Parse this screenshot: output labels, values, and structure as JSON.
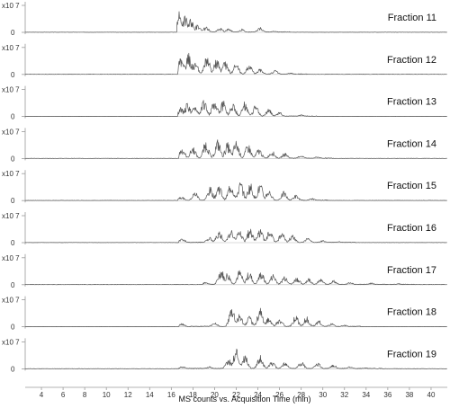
{
  "chart_data": {
    "type": "line",
    "xlabel": "MS counts vs. Acquisition Time (min)",
    "xlim": [
      2.5,
      41.5
    ],
    "xticks": [
      4,
      6,
      8,
      10,
      12,
      14,
      16,
      18,
      20,
      22,
      24,
      26,
      28,
      30,
      32,
      34,
      36,
      38,
      40
    ],
    "y_scale_label": "x10 7",
    "y_zero_label": "0",
    "series_color": "#555555",
    "series": [
      {
        "name": "Fraction 11",
        "peaks": [
          [
            16.8,
            0.95
          ],
          [
            17.3,
            0.75
          ],
          [
            17.8,
            0.6
          ],
          [
            18.4,
            0.35
          ],
          [
            19.2,
            0.25
          ],
          [
            20.5,
            0.2
          ],
          [
            21.3,
            0.18
          ],
          [
            22.5,
            0.15
          ],
          [
            24.2,
            0.22
          ],
          [
            25.5,
            0.06
          ]
        ]
      },
      {
        "name": "Fraction 12",
        "peaks": [
          [
            16.9,
            0.8
          ],
          [
            17.6,
            0.95
          ],
          [
            18.2,
            0.6
          ],
          [
            19.3,
            0.85
          ],
          [
            20.2,
            0.7
          ],
          [
            21.0,
            0.6
          ],
          [
            22.0,
            0.5
          ],
          [
            23.2,
            0.45
          ],
          [
            24.2,
            0.3
          ],
          [
            25.6,
            0.2
          ],
          [
            27.0,
            0.08
          ]
        ]
      },
      {
        "name": "Fraction 13",
        "peaks": [
          [
            16.9,
            0.4
          ],
          [
            17.5,
            0.6
          ],
          [
            18.2,
            0.5
          ],
          [
            19.0,
            0.75
          ],
          [
            20.0,
            0.85
          ],
          [
            20.8,
            0.7
          ],
          [
            21.7,
            0.65
          ],
          [
            22.8,
            0.7
          ],
          [
            23.8,
            0.5
          ],
          [
            25.0,
            0.35
          ],
          [
            26.0,
            0.2
          ],
          [
            28.0,
            0.08
          ]
        ]
      },
      {
        "name": "Fraction 14",
        "peaks": [
          [
            17.0,
            0.5
          ],
          [
            18.0,
            0.55
          ],
          [
            19.2,
            0.8
          ],
          [
            20.3,
            0.85
          ],
          [
            21.2,
            0.7
          ],
          [
            22.0,
            0.8
          ],
          [
            23.1,
            0.65
          ],
          [
            24.1,
            0.45
          ],
          [
            25.3,
            0.35
          ],
          [
            26.5,
            0.25
          ],
          [
            28.0,
            0.15
          ],
          [
            29.5,
            0.08
          ]
        ]
      },
      {
        "name": "Fraction 15",
        "peaks": [
          [
            16.9,
            0.2
          ],
          [
            18.2,
            0.4
          ],
          [
            19.6,
            0.6
          ],
          [
            20.4,
            0.75
          ],
          [
            21.5,
            0.85
          ],
          [
            22.4,
            0.85
          ],
          [
            23.3,
            0.8
          ],
          [
            24.2,
            0.75
          ],
          [
            25.0,
            0.5
          ],
          [
            26.4,
            0.4
          ],
          [
            27.5,
            0.25
          ],
          [
            29.0,
            0.1
          ]
        ]
      },
      {
        "name": "Fraction 16",
        "peaks": [
          [
            17.0,
            0.2
          ],
          [
            19.5,
            0.25
          ],
          [
            20.4,
            0.55
          ],
          [
            21.5,
            0.65
          ],
          [
            22.3,
            0.6
          ],
          [
            23.3,
            0.7
          ],
          [
            24.2,
            0.65
          ],
          [
            25.1,
            0.55
          ],
          [
            26.2,
            0.45
          ],
          [
            27.2,
            0.35
          ],
          [
            28.6,
            0.2
          ],
          [
            30.0,
            0.1
          ],
          [
            31.5,
            0.05
          ]
        ]
      },
      {
        "name": "Fraction 17",
        "peaks": [
          [
            19.2,
            0.12
          ],
          [
            20.6,
            0.75
          ],
          [
            21.2,
            0.55
          ],
          [
            22.3,
            0.65
          ],
          [
            23.2,
            0.6
          ],
          [
            24.3,
            0.6
          ],
          [
            25.4,
            0.5
          ],
          [
            26.5,
            0.45
          ],
          [
            27.6,
            0.35
          ],
          [
            28.7,
            0.3
          ],
          [
            29.8,
            0.25
          ],
          [
            31.0,
            0.2
          ],
          [
            32.5,
            0.12
          ],
          [
            34.5,
            0.08
          ],
          [
            37.0,
            0.05
          ]
        ]
      },
      {
        "name": "Fraction 18",
        "peaks": [
          [
            17.0,
            0.15
          ],
          [
            20.0,
            0.2
          ],
          [
            21.6,
            0.85
          ],
          [
            22.3,
            0.55
          ],
          [
            23.2,
            0.45
          ],
          [
            24.2,
            0.85
          ],
          [
            25.0,
            0.45
          ],
          [
            26.0,
            0.4
          ],
          [
            27.5,
            0.5
          ],
          [
            28.5,
            0.45
          ],
          [
            29.6,
            0.3
          ],
          [
            30.8,
            0.15
          ],
          [
            32.0,
            0.08
          ]
        ]
      },
      {
        "name": "Fraction 19",
        "peaks": [
          [
            17.0,
            0.12
          ],
          [
            19.5,
            0.1
          ],
          [
            21.3,
            0.45
          ],
          [
            22.0,
            0.95
          ],
          [
            22.8,
            0.65
          ],
          [
            24.2,
            0.6
          ],
          [
            25.3,
            0.35
          ],
          [
            26.5,
            0.3
          ],
          [
            28.0,
            0.35
          ],
          [
            29.5,
            0.3
          ],
          [
            31.0,
            0.2
          ],
          [
            32.5,
            0.1
          ],
          [
            34.0,
            0.05
          ]
        ]
      }
    ]
  }
}
